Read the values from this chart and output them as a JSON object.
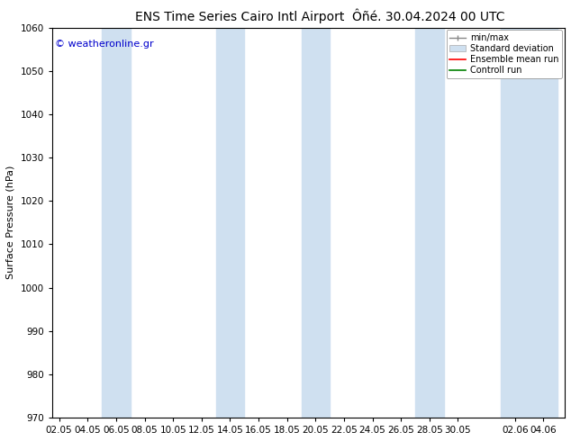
{
  "title_left": "ENS Time Series Cairo Intl Airport",
  "title_right": "Ôñé. 30.04.2024 00 UTC",
  "ylabel": "Surface Pressure (hPa)",
  "ylim": [
    970,
    1060
  ],
  "yticks": [
    970,
    980,
    990,
    1000,
    1010,
    1020,
    1030,
    1040,
    1050,
    1060
  ],
  "background_color": "#ffffff",
  "plot_bg_color": "#ffffff",
  "band_color": "#cfe0f0",
  "watermark": "© weatheronline.gr",
  "title_fontsize": 10,
  "axis_fontsize": 8,
  "tick_fontsize": 7.5,
  "xtick_labels": [
    "02.05",
    "04.05",
    "06.05",
    "08.05",
    "10.05",
    "12.05",
    "14.05",
    "16.05",
    "18.05",
    "20.05",
    "22.05",
    "24.05",
    "26.05",
    "28.05",
    "30.05",
    "02.06",
    "04.06"
  ],
  "xtick_positions": [
    0,
    2,
    4,
    6,
    8,
    10,
    12,
    14,
    16,
    18,
    20,
    22,
    24,
    26,
    28,
    32,
    34
  ],
  "band_ranges": [
    [
      3,
      5
    ],
    [
      11,
      13
    ],
    [
      17,
      19
    ],
    [
      25,
      27
    ],
    [
      31,
      35
    ]
  ],
  "xlim": [
    -0.5,
    35.5
  ]
}
